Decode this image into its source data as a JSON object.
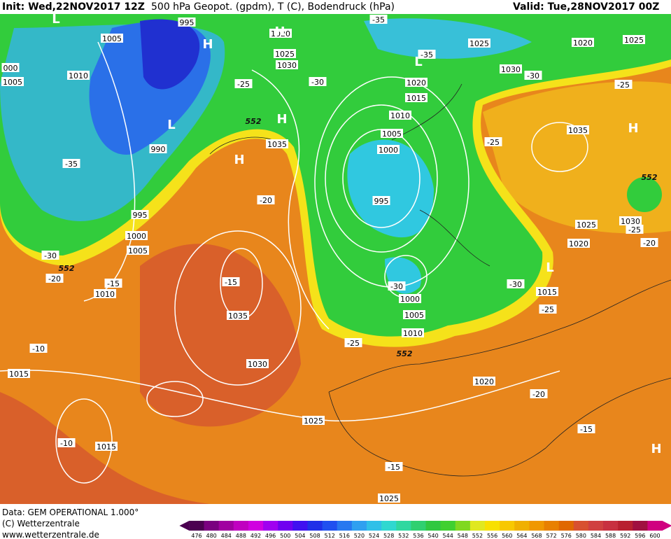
{
  "header": {
    "init": "Init: Wed,22NOV2017 12Z",
    "product": "500 hPa Geopot. (gpdm), T (C), Bodendruck (hPa)",
    "valid": "Valid: Tue,28NOV2017 00Z"
  },
  "map_labels": [
    "995",
    "1005",
    "1010",
    "1005",
    "000",
    "990",
    "995",
    "1000",
    "1005",
    "1010",
    "-35",
    "-30",
    "-20",
    "-15",
    "-10",
    "1015",
    "-10",
    "1015",
    "1035",
    "-15",
    "1030",
    "-20",
    "1035",
    "1025",
    "1030",
    "-25",
    "-30",
    "-35",
    "1020",
    "1025",
    "-35",
    "1020",
    "1015",
    "1010",
    "1005",
    "1000",
    "995",
    "-30",
    "1000",
    "1005",
    "1010",
    "-25",
    "1020",
    "1025",
    "1025",
    "-15",
    "-20",
    "-15",
    "1030",
    "-30",
    "1020",
    "1025",
    "-25",
    "1035",
    "-25",
    "1025",
    "1030",
    "-25",
    "-20",
    "1020",
    "-30",
    "1015",
    "-25",
    "552",
    "552",
    "552",
    "552"
  ],
  "pressure_centers": [
    "L",
    "H",
    "H",
    "L",
    "H",
    "H",
    "L",
    "H",
    "L",
    "H"
  ],
  "footer": {
    "data": "Data: GEM OPERATIONAL 1.000°",
    "copyright": "(C) Wetterzentrale",
    "url": "www.wetterzentrale.de"
  },
  "colorbar": {
    "ticks": [
      476,
      480,
      484,
      488,
      492,
      496,
      500,
      504,
      508,
      512,
      516,
      520,
      524,
      528,
      532,
      536,
      540,
      544,
      548,
      552,
      556,
      560,
      564,
      568,
      572,
      576,
      580,
      584,
      588,
      592,
      596,
      600
    ],
    "colors": [
      "#4b0050",
      "#7a0080",
      "#a000a0",
      "#c000c0",
      "#d000e0",
      "#a000f0",
      "#7000f0",
      "#4010f0",
      "#2030e8",
      "#2050f0",
      "#2878f0",
      "#30a0f0",
      "#30c0e8",
      "#30d8d0",
      "#30d8a0",
      "#30d070",
      "#30c840",
      "#40d030",
      "#80d820",
      "#e0e820",
      "#f8e000",
      "#f8c800",
      "#f0b000",
      "#f09800",
      "#e88000",
      "#e06800",
      "#d85030",
      "#d04040",
      "#c83040",
      "#b82030",
      "#a01040",
      "#d00080"
    ]
  }
}
